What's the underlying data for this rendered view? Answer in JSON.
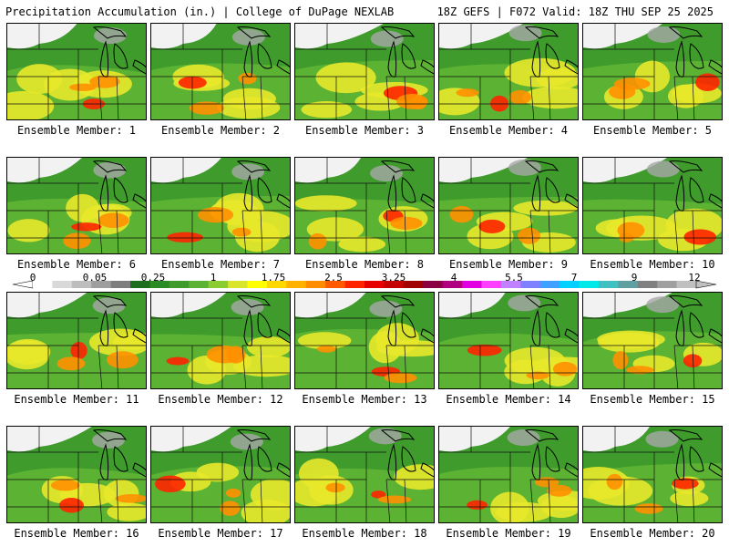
{
  "header": {
    "left": "Precipitation Accumulation (in.) | College of DuPage NEXLAB",
    "right": "18Z GEFS | F072 Valid: 18Z THU SEP 25 2025"
  },
  "scale": {
    "ticks": [
      "0",
      "0.05",
      "0.25",
      "1",
      "1.75",
      "2.5",
      "3.25",
      "4",
      "5.5",
      "7",
      "9",
      "12"
    ],
    "colors": [
      "#ffffff",
      "#d9d9d9",
      "#bdbdbd",
      "#9e9e9e",
      "#7d7d7d",
      "#1e6e1e",
      "#2a8a24",
      "#3e9b2c",
      "#5cb233",
      "#8ccc33",
      "#d7e62b",
      "#ffff00",
      "#ffd700",
      "#ffb000",
      "#ff8c00",
      "#ff5a00",
      "#ff2400",
      "#e60000",
      "#c40000",
      "#a00000",
      "#8b0040",
      "#b00080",
      "#e000e0",
      "#ff40ff",
      "#c080ff",
      "#8080ff",
      "#40a0ff",
      "#00d0ff",
      "#00e8e8",
      "#40c0c0",
      "#60a0a0",
      "#808080",
      "#a0a0a0",
      "#c0c0c0"
    ]
  },
  "panels": [
    {
      "label": "Ensemble Member: 1"
    },
    {
      "label": "Ensemble Member: 2"
    },
    {
      "label": "Ensemble Member: 3"
    },
    {
      "label": "Ensemble Member: 4"
    },
    {
      "label": "Ensemble Member: 5"
    },
    {
      "label": "Ensemble Member: 6"
    },
    {
      "label": "Ensemble Member: 7"
    },
    {
      "label": "Ensemble Member: 8"
    },
    {
      "label": "Ensemble Member: 9"
    },
    {
      "label": "Ensemble Member: 10"
    },
    {
      "label": "Ensemble Member: 11"
    },
    {
      "label": "Ensemble Member: 12"
    },
    {
      "label": "Ensemble Member: 13"
    },
    {
      "label": "Ensemble Member: 14"
    },
    {
      "label": "Ensemble Member: 15"
    },
    {
      "label": "Ensemble Member: 16"
    },
    {
      "label": "Ensemble Member: 17"
    },
    {
      "label": "Ensemble Member: 18"
    },
    {
      "label": "Ensemble Member: 19"
    },
    {
      "label": "Ensemble Member: 20"
    }
  ]
}
